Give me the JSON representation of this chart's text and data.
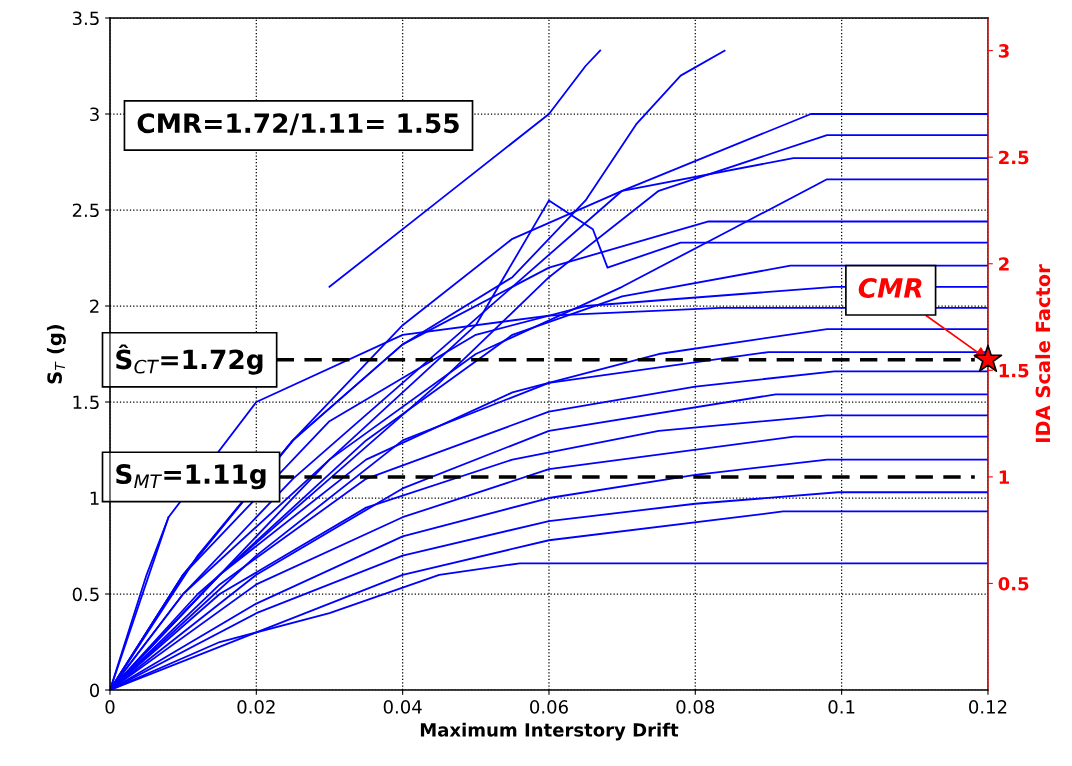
{
  "chart_data": {
    "type": "line",
    "xlabel": "Maximum Interstory Drift",
    "ylabel": "S$_{T}$ (g)",
    "y2label": "IDA Scale Factor",
    "xlim": [
      0,
      0.12
    ],
    "xticks": [
      0,
      0.02,
      0.04,
      0.06,
      0.08,
      0.1,
      0.12
    ],
    "ylim": [
      0,
      3.5
    ],
    "yticks": [
      0,
      0.5,
      1,
      1.5,
      2,
      2.5,
      3,
      3.5
    ],
    "y2lim": [
      0,
      3.153
    ],
    "y2ticks": [
      0.5,
      1,
      1.5,
      2,
      2.5,
      3
    ],
    "grid": true,
    "marker": "none",
    "line_style": "solid",
    "ref_lines": [
      {
        "axis": "y",
        "value": 1.72,
        "label": "Ŝ$_{CT}$=1.72g",
        "color": "#000000",
        "line_style": "dashed"
      },
      {
        "axis": "y",
        "value": 1.11,
        "label": "S$_{MT}$=1.11g",
        "color": "#000000",
        "line_style": "dashed"
      }
    ],
    "annotations": [
      "CMR=1.72/1.11= 1.55",
      {
        "text": "CMR",
        "x": 0.12,
        "y": 1.72
      }
    ],
    "series": [
      {
        "color": "#0000ff",
        "x": [
          0,
          0.01,
          0.025,
          0.04,
          0.055,
          0.07,
          0.0958,
          0.12
        ],
        "values": [
          0,
          0.5,
          1.1,
          1.6,
          2.1,
          2.6,
          3.0,
          3.0
        ]
      },
      {
        "color": "#0000ff",
        "x": [
          0,
          0.012,
          0.03,
          0.045,
          0.06,
          0.075,
          0.098,
          0.12
        ],
        "values": [
          0,
          0.5,
          1.1,
          1.6,
          2.15,
          2.6,
          2.89,
          2.89
        ]
      },
      {
        "color": "#0000ff",
        "x": [
          0,
          0.01,
          0.025,
          0.04,
          0.055,
          0.07,
          0.0934,
          0.12
        ],
        "values": [
          0,
          0.6,
          1.3,
          1.9,
          2.35,
          2.6,
          2.77,
          2.77
        ]
      },
      {
        "color": "#0000ff",
        "x": [
          0,
          0.015,
          0.03,
          0.05,
          0.07,
          0.085,
          0.098,
          0.12
        ],
        "values": [
          0,
          0.6,
          1.2,
          1.75,
          2.1,
          2.4,
          2.66,
          2.66
        ]
      },
      {
        "color": "#0000ff",
        "x": [
          0,
          0.012,
          0.025,
          0.04,
          0.06,
          0.0817,
          0.12
        ],
        "values": [
          0,
          0.7,
          1.3,
          1.8,
          2.2,
          2.44,
          2.44
        ]
      },
      {
        "color": "#0000ff",
        "x": [
          0,
          0.01,
          0.03,
          0.05,
          0.06,
          0.066,
          0.068,
          0.078,
          0.12
        ],
        "values": [
          0,
          0.5,
          1.2,
          1.9,
          2.55,
          2.4,
          2.2,
          2.33,
          2.33
        ]
      },
      {
        "color": "#0000ff",
        "x": [
          0,
          0.015,
          0.035,
          0.055,
          0.07,
          0.093,
          0.12
        ],
        "values": [
          0,
          0.6,
          1.3,
          1.85,
          2.05,
          2.21,
          2.21
        ]
      },
      {
        "color": "#0000ff",
        "x": [
          0,
          0.01,
          0.03,
          0.05,
          0.065,
          0.099,
          0.12
        ],
        "values": [
          0,
          0.6,
          1.4,
          1.85,
          2.0,
          2.1,
          2.1
        ]
      },
      {
        "color": "#0000ff",
        "x": [
          0,
          0.008,
          0.02,
          0.04,
          0.06,
          0.0835,
          0.12
        ],
        "values": [
          0,
          0.9,
          1.5,
          1.85,
          1.95,
          1.99,
          1.99
        ]
      },
      {
        "color": "#0000ff",
        "x": [
          0,
          0.015,
          0.035,
          0.055,
          0.075,
          0.098,
          0.12
        ],
        "values": [
          0,
          0.6,
          1.2,
          1.55,
          1.75,
          1.88,
          1.88
        ]
      },
      {
        "color": "#0000ff",
        "x": [
          0,
          0.02,
          0.04,
          0.06,
          0.09,
          0.12
        ],
        "values": [
          0,
          0.7,
          1.3,
          1.6,
          1.76,
          1.76
        ]
      },
      {
        "color": "#0000ff",
        "x": [
          0,
          0.015,
          0.035,
          0.06,
          0.08,
          0.099,
          0.12
        ],
        "values": [
          0,
          0.55,
          1.1,
          1.45,
          1.58,
          1.66,
          1.66
        ]
      },
      {
        "color": "#0000ff",
        "x": [
          0,
          0.02,
          0.04,
          0.06,
          0.091,
          0.12
        ],
        "values": [
          0,
          0.6,
          1.05,
          1.35,
          1.54,
          1.54
        ]
      },
      {
        "color": "#0000ff",
        "x": [
          0,
          0.015,
          0.035,
          0.055,
          0.075,
          0.098,
          0.12
        ],
        "values": [
          0,
          0.5,
          0.95,
          1.2,
          1.35,
          1.43,
          1.43
        ]
      },
      {
        "color": "#0000ff",
        "x": [
          0,
          0.02,
          0.04,
          0.06,
          0.0935,
          0.12
        ],
        "values": [
          0,
          0.55,
          0.9,
          1.15,
          1.32,
          1.32
        ]
      },
      {
        "color": "#0000ff",
        "x": [
          0,
          0.02,
          0.04,
          0.06,
          0.08,
          0.098,
          0.12
        ],
        "values": [
          0,
          0.45,
          0.8,
          1.0,
          1.12,
          1.2,
          1.2
        ]
      },
      {
        "color": "#0000ff",
        "x": [
          0,
          0.02,
          0.04,
          0.06,
          0.08,
          0.0995,
          0.12
        ],
        "values": [
          0,
          0.4,
          0.7,
          0.88,
          0.97,
          1.03,
          1.03
        ]
      },
      {
        "color": "#0000ff",
        "x": [
          0,
          0.02,
          0.04,
          0.06,
          0.092,
          0.12
        ],
        "values": [
          0,
          0.3,
          0.6,
          0.78,
          0.93,
          0.93
        ]
      },
      {
        "color": "#0000ff",
        "x": [
          0,
          0.015,
          0.03,
          0.045,
          0.056,
          0.12
        ],
        "values": [
          0,
          0.25,
          0.4,
          0.6,
          0.66,
          0.66
        ]
      },
      {
        "color": "#0000ff",
        "x": [
          0,
          0.005,
          0.008,
          0.02,
          0.03,
          0.045,
          0.06,
          0.065,
          0.067
        ],
        "values": [
          0,
          0.6,
          0.9,
          null,
          2.1,
          2.55,
          3.0,
          3.25,
          3.33
        ]
      },
      {
        "color": "#0000ff",
        "x": [
          0,
          0.01,
          0.025,
          0.04,
          0.055,
          0.065,
          0.072,
          0.078,
          0.084
        ],
        "values": [
          0,
          0.6,
          1.3,
          1.8,
          2.15,
          2.55,
          2.95,
          3.2,
          3.33
        ]
      },
      {
        "type": "scatter",
        "marker": "star",
        "axis": "y2",
        "color": "#ff0000",
        "x": [
          0.12
        ],
        "values": [
          1.55
        ]
      }
    ]
  }
}
